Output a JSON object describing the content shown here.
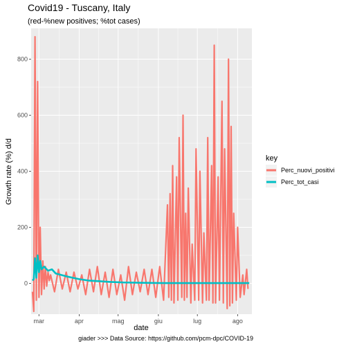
{
  "chart_data": {
    "type": "line",
    "title": "Covid19 - Tuscany, Italy",
    "subtitle": "(red-%new positives; %tot cases)",
    "xlabel": "date",
    "ylabel": "Growth rate (%) d/d",
    "caption": "giader >>>  Data Source: https://github.com/pcm-dpc/COVID-19",
    "legend_title": "key",
    "legend_position": "right",
    "grid": true,
    "x_ticks": [
      "mar",
      "apr",
      "mag",
      "giu",
      "lug",
      "ago"
    ],
    "y_ticks": [
      0,
      200,
      400,
      600,
      800
    ],
    "xlim": [
      "2020-02-24",
      "2020-08-12"
    ],
    "ylim": [
      -110,
      910
    ],
    "colors": {
      "panel_bg": "#EBEBEB",
      "grid": "#FFFFFF",
      "nuovi": "#F8766D",
      "tot": "#00BFC4"
    },
    "series": [
      {
        "name": "Perc_nuovi_positivi",
        "x": [
          "2020-02-25",
          "2020-02-26",
          "2020-02-27",
          "2020-02-28",
          "2020-02-29",
          "2020-03-01",
          "2020-03-02",
          "2020-03-03",
          "2020-03-04",
          "2020-03-05",
          "2020-03-06",
          "2020-03-07",
          "2020-03-08",
          "2020-03-09",
          "2020-03-10",
          "2020-03-13",
          "2020-03-16",
          "2020-03-19",
          "2020-03-22",
          "2020-03-25",
          "2020-03-28",
          "2020-03-31",
          "2020-04-03",
          "2020-04-06",
          "2020-04-09",
          "2020-04-12",
          "2020-04-15",
          "2020-04-18",
          "2020-04-21",
          "2020-04-24",
          "2020-04-27",
          "2020-04-30",
          "2020-05-03",
          "2020-05-06",
          "2020-05-09",
          "2020-05-12",
          "2020-05-15",
          "2020-05-18",
          "2020-05-21",
          "2020-05-24",
          "2020-05-27",
          "2020-05-30",
          "2020-06-02",
          "2020-06-05",
          "2020-06-08",
          "2020-06-09",
          "2020-06-10",
          "2020-06-11",
          "2020-06-12",
          "2020-06-13",
          "2020-06-15",
          "2020-06-16",
          "2020-06-17",
          "2020-06-19",
          "2020-06-20",
          "2020-06-21",
          "2020-06-22",
          "2020-06-23",
          "2020-06-24",
          "2020-06-26",
          "2020-06-27",
          "2020-06-29",
          "2020-06-30",
          "2020-07-02",
          "2020-07-03",
          "2020-07-05",
          "2020-07-06",
          "2020-07-08",
          "2020-07-09",
          "2020-07-10",
          "2020-07-12",
          "2020-07-13",
          "2020-07-14",
          "2020-07-15",
          "2020-07-17",
          "2020-07-18",
          "2020-07-20",
          "2020-07-21",
          "2020-07-22",
          "2020-07-24",
          "2020-07-25",
          "2020-07-26",
          "2020-07-27",
          "2020-07-28",
          "2020-07-29",
          "2020-07-31",
          "2020-08-01",
          "2020-08-03",
          "2020-08-05",
          "2020-08-06",
          "2020-08-08",
          "2020-08-09"
        ],
        "y": [
          -30,
          -100,
          880,
          -60,
          720,
          -50,
          200,
          -40,
          80,
          -20,
          60,
          -10,
          40,
          10,
          30,
          -30,
          50,
          -20,
          40,
          -30,
          40,
          -20,
          30,
          -40,
          50,
          -30,
          60,
          -40,
          40,
          -50,
          50,
          -40,
          30,
          -60,
          60,
          -40,
          40,
          -30,
          50,
          -40,
          50,
          -50,
          60,
          -60,
          280,
          -50,
          320,
          -60,
          420,
          -70,
          380,
          -60,
          520,
          -50,
          600,
          -60,
          250,
          -50,
          340,
          -70,
          140,
          -60,
          480,
          -60,
          400,
          -70,
          180,
          -60,
          520,
          -60,
          420,
          -70,
          850,
          -70,
          380,
          -60,
          650,
          -70,
          480,
          -90,
          800,
          -80,
          560,
          -70,
          250,
          -60,
          200,
          -50,
          30,
          -40,
          50,
          -20
        ]
      },
      {
        "name": "Perc_tot_casi",
        "x": [
          "2020-02-25",
          "2020-02-26",
          "2020-02-27",
          "2020-02-28",
          "2020-02-29",
          "2020-03-01",
          "2020-03-02",
          "2020-03-03",
          "2020-03-05",
          "2020-03-08",
          "2020-03-11",
          "2020-03-14",
          "2020-03-18",
          "2020-03-22",
          "2020-03-27",
          "2020-04-01",
          "2020-04-08",
          "2020-04-15",
          "2020-04-25",
          "2020-05-05",
          "2020-05-20",
          "2020-06-05",
          "2020-06-25",
          "2020-07-15",
          "2020-08-10"
        ],
        "y": [
          10,
          15,
          90,
          20,
          100,
          40,
          80,
          50,
          60,
          45,
          50,
          35,
          30,
          25,
          20,
          15,
          10,
          8,
          5,
          3,
          2,
          1,
          1,
          1,
          1
        ]
      }
    ]
  }
}
